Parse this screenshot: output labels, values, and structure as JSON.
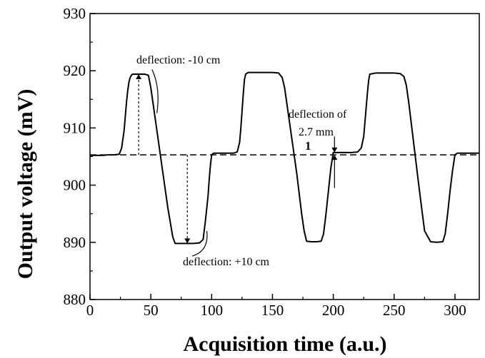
{
  "chart_data": {
    "type": "line",
    "xlabel": "Acquisition time (a.u.)",
    "ylabel": "Output voltage (mV)",
    "xlim": [
      0,
      320
    ],
    "ylim": [
      880,
      930
    ],
    "xticks": [
      0,
      50,
      100,
      150,
      200,
      250,
      300
    ],
    "yticks": [
      880,
      890,
      900,
      910,
      920,
      930
    ],
    "grid": false,
    "series": [
      {
        "x": [
          0,
          5,
          10,
          15,
          20,
          24,
          26,
          28,
          29,
          30,
          31,
          32,
          33,
          34,
          35,
          40,
          45,
          48,
          50,
          52,
          54,
          56,
          58,
          60,
          62,
          64,
          66,
          68,
          70,
          75,
          80,
          85,
          90,
          93,
          95,
          97,
          98,
          99,
          100,
          101,
          102,
          110,
          118,
          121,
          123,
          124,
          125,
          126,
          127,
          128,
          130,
          135,
          140,
          145,
          150,
          155,
          158,
          160,
          162,
          164,
          166,
          168,
          170,
          172,
          174,
          176,
          178,
          182,
          186,
          190,
          192,
          194,
          196,
          198,
          200,
          205,
          210,
          215,
          220,
          223,
          225,
          226,
          227,
          228,
          229,
          230,
          235,
          240,
          245,
          250,
          255,
          258,
          260,
          262,
          264,
          266,
          268,
          270,
          272,
          275,
          280,
          285,
          290,
          292,
          294,
          296,
          298,
          300,
          302,
          305,
          310,
          315,
          320
        ],
        "y": [
          905.2,
          905.2,
          905.2,
          905.3,
          905.3,
          905.4,
          906.5,
          909.5,
          912,
          914.5,
          916.5,
          918,
          918.8,
          919.2,
          919.4,
          919.4,
          919.4,
          919.2,
          917,
          914,
          911,
          908,
          905,
          902,
          899,
          896,
          893.5,
          891,
          889.8,
          889.8,
          889.8,
          889.8,
          889.9,
          890.5,
          894,
          898,
          901,
          903.5,
          905.3,
          905.5,
          905.6,
          905.6,
          905.6,
          905.8,
          907.5,
          910,
          913,
          916,
          918.5,
          919.4,
          919.7,
          919.7,
          919.7,
          919.7,
          919.7,
          919.6,
          918.8,
          917,
          914,
          911,
          908,
          905,
          902,
          898.5,
          895,
          892,
          890.2,
          890.1,
          890.1,
          890.2,
          891.5,
          895,
          899,
          903,
          905.7,
          905.7,
          905.7,
          905.7,
          905.8,
          906.5,
          908.5,
          911,
          913.5,
          916,
          918.2,
          919.4,
          919.6,
          919.6,
          919.6,
          919.6,
          919.5,
          919,
          917.5,
          914.5,
          911,
          907.5,
          904,
          900.5,
          897,
          892,
          890.1,
          890,
          890.1,
          891.5,
          895,
          899,
          902.5,
          905.3,
          905.6,
          905.6,
          905.6,
          905.6,
          905.6
        ]
      }
    ],
    "reference_line": {
      "y": 905.3,
      "style": "dashed"
    },
    "annotations": [
      {
        "text": "deflection: -10 cm"
      },
      {
        "text": "deflection: +10 cm"
      },
      {
        "text": "deflection of"
      },
      {
        "text": "2.7 mm"
      },
      {
        "text": "1"
      }
    ]
  }
}
